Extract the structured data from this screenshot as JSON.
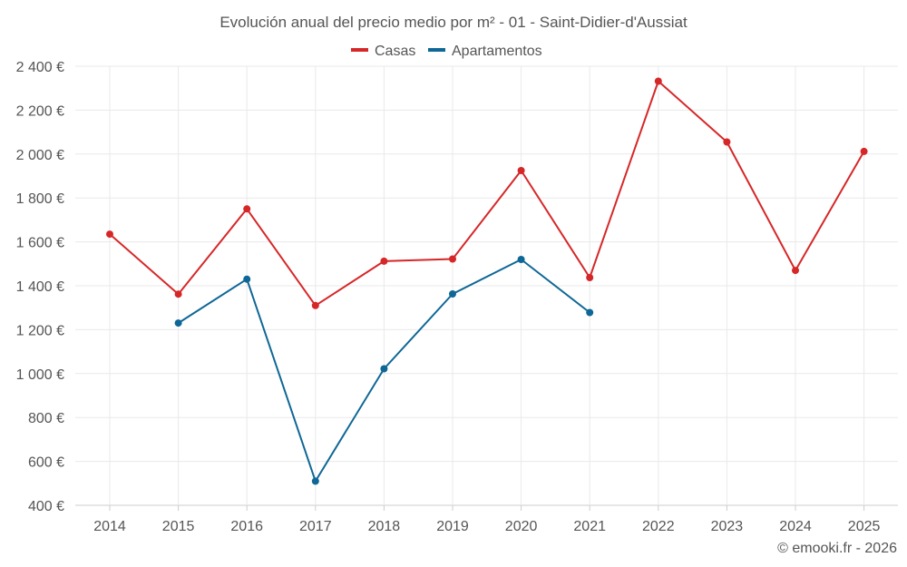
{
  "chart_data": {
    "type": "line",
    "title": "Evolución anual del precio medio por m² - 01 - Saint-Didier-d'Aussiat",
    "categories": [
      "2014",
      "2015",
      "2016",
      "2017",
      "2018",
      "2019",
      "2020",
      "2021",
      "2022",
      "2023",
      "2024",
      "2025"
    ],
    "ylim": [
      400,
      2400
    ],
    "yticks": [
      400,
      600,
      800,
      1000,
      1200,
      1400,
      1600,
      1800,
      2000,
      2200,
      2400
    ],
    "ytick_labels": [
      "400 €",
      "600 €",
      "800 €",
      "1 000 €",
      "1 200 €",
      "1 400 €",
      "1 600 €",
      "1 800 €",
      "2 000 €",
      "2 200 €",
      "2 400 €"
    ],
    "legend_position": "top-center",
    "grid": true,
    "series": [
      {
        "name": "Casas",
        "color": "#d62728",
        "values": [
          1635,
          1362,
          1750,
          1310,
          1512,
          1522,
          1925,
          1437,
          2332,
          2055,
          1470,
          2012
        ]
      },
      {
        "name": "Apartamentos",
        "color": "#0e6796",
        "values": [
          null,
          1230,
          1430,
          510,
          1022,
          1363,
          1520,
          1278,
          null,
          null,
          null,
          null
        ]
      }
    ]
  },
  "credit": "© emooki.fr - 2026"
}
